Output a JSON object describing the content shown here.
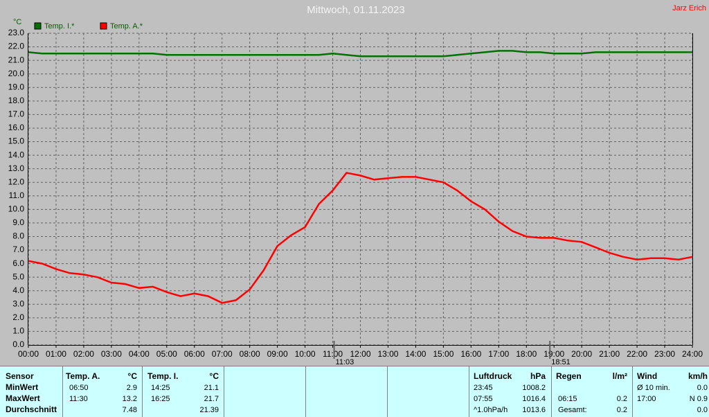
{
  "header": {
    "author": "Jarz Erich"
  },
  "chart_data": {
    "type": "line",
    "title": "Mittwoch, 01.11.2023",
    "y_unit": "°C",
    "grid": true,
    "x": [
      0,
      0.5,
      1,
      1.5,
      2,
      2.5,
      3,
      3.5,
      4,
      4.5,
      5,
      5.5,
      6,
      6.5,
      7,
      7.5,
      8,
      8.5,
      9,
      9.5,
      10,
      10.5,
      11,
      11.5,
      12,
      12.5,
      13,
      13.5,
      14,
      14.5,
      15,
      15.5,
      16,
      16.5,
      17,
      17.5,
      18,
      18.5,
      19,
      19.5,
      20,
      20.5,
      21,
      21.5,
      22,
      22.5,
      23,
      23.5,
      24
    ],
    "series": [
      {
        "name": "Temp. I.*",
        "color": "#007000",
        "values": [
          21.6,
          21.5,
          21.5,
          21.5,
          21.5,
          21.5,
          21.5,
          21.5,
          21.5,
          21.5,
          21.4,
          21.4,
          21.4,
          21.4,
          21.4,
          21.4,
          21.4,
          21.4,
          21.4,
          21.4,
          21.4,
          21.4,
          21.5,
          21.4,
          21.3,
          21.3,
          21.3,
          21.3,
          21.3,
          21.3,
          21.3,
          21.4,
          21.5,
          21.6,
          21.7,
          21.7,
          21.6,
          21.6,
          21.5,
          21.5,
          21.5,
          21.6,
          21.6,
          21.6,
          21.6,
          21.6,
          21.6,
          21.6,
          21.6
        ]
      },
      {
        "name": "Temp. A.*",
        "color": "#ff0000",
        "values": [
          6.2,
          6.0,
          5.6,
          5.3,
          5.2,
          5.0,
          4.6,
          4.5,
          4.2,
          4.3,
          3.9,
          3.6,
          3.8,
          3.6,
          3.1,
          3.3,
          4.1,
          5.5,
          7.3,
          8.1,
          8.7,
          10.4,
          11.4,
          12.7,
          12.5,
          12.2,
          12.3,
          12.4,
          12.4,
          12.2,
          12.0,
          11.4,
          10.6,
          10.0,
          9.1,
          8.4,
          8.0,
          7.9,
          7.9,
          7.7,
          7.6,
          7.2,
          6.8,
          6.5,
          6.3,
          6.4,
          6.4,
          6.3,
          6.5
        ]
      }
    ],
    "xlim": [
      0,
      24
    ],
    "ylim": [
      0,
      23
    ],
    "xticks": [
      {
        "value": 0,
        "label": "00:00"
      },
      {
        "value": 1,
        "label": "01:00"
      },
      {
        "value": 2,
        "label": "02:00"
      },
      {
        "value": 3,
        "label": "03:00"
      },
      {
        "value": 4,
        "label": "04:00"
      },
      {
        "value": 5,
        "label": "05:00"
      },
      {
        "value": 6,
        "label": "06:00"
      },
      {
        "value": 7,
        "label": "07:00"
      },
      {
        "value": 8,
        "label": "08:00"
      },
      {
        "value": 9,
        "label": "09:00"
      },
      {
        "value": 10,
        "label": "10:00"
      },
      {
        "value": 11,
        "label": "11:00"
      },
      {
        "value": 12,
        "label": "12:00"
      },
      {
        "value": 13,
        "label": "13:00"
      },
      {
        "value": 14,
        "label": "14:00"
      },
      {
        "value": 15,
        "label": "15:00"
      },
      {
        "value": 16,
        "label": "16:00"
      },
      {
        "value": 17,
        "label": "17:00"
      },
      {
        "value": 18,
        "label": "18:00"
      },
      {
        "value": 19,
        "label": "19:00"
      },
      {
        "value": 20,
        "label": "20:00"
      },
      {
        "value": 21,
        "label": "21:00"
      },
      {
        "value": 22,
        "label": "22:00"
      },
      {
        "value": 23,
        "label": "23:00"
      },
      {
        "value": 24,
        "label": "24:00"
      }
    ],
    "yticks": [
      {
        "value": 0,
        "label": "0.0"
      },
      {
        "value": 1,
        "label": "1.0"
      },
      {
        "value": 2,
        "label": "2.0"
      },
      {
        "value": 3,
        "label": "3.0"
      },
      {
        "value": 4,
        "label": "4.0"
      },
      {
        "value": 5,
        "label": "5.0"
      },
      {
        "value": 6,
        "label": "6.0"
      },
      {
        "value": 7,
        "label": "7.0"
      },
      {
        "value": 8,
        "label": "8.0"
      },
      {
        "value": 9,
        "label": "9.0"
      },
      {
        "value": 10,
        "label": "10.0"
      },
      {
        "value": 11,
        "label": "11.0"
      },
      {
        "value": 12,
        "label": "12.0"
      },
      {
        "value": 13,
        "label": "13.0"
      },
      {
        "value": 14,
        "label": "14.0"
      },
      {
        "value": 15,
        "label": "15.0"
      },
      {
        "value": 16,
        "label": "16.0"
      },
      {
        "value": 17,
        "label": "17.0"
      },
      {
        "value": 18,
        "label": "18.0"
      },
      {
        "value": 19,
        "label": "19.0"
      },
      {
        "value": 20,
        "label": "20.0"
      },
      {
        "value": 21,
        "label": "21.0"
      },
      {
        "value": 22,
        "label": "22.0"
      },
      {
        "value": 23,
        "label": "23.0"
      }
    ],
    "markers": [
      {
        "value": 11.05,
        "label": "11:03"
      },
      {
        "value": 18.85,
        "label": "18:51"
      }
    ]
  },
  "table": {
    "rows": [
      [
        "Sensor",
        "Temp. A.",
        "°C",
        "Temp. I.",
        "°C",
        "Luftdruck",
        "hPa",
        "Regen",
        "l/m²",
        "Wind",
        "km/h"
      ],
      [
        "MinWert",
        "06:50",
        "2.9",
        "14:25",
        "21.1",
        "23:45",
        "1008.2",
        null,
        null,
        "Ø 10 min.",
        "0.0"
      ],
      [
        "MaxWert",
        "11:30",
        "13.2",
        "16:25",
        "21.7",
        "07:55",
        "1016.4",
        "06:15",
        "0.2",
        "17:00",
        "N 0.9"
      ],
      [
        "Durchschnitt",
        null,
        "7.48",
        null,
        "21.39",
        "^1.0hPa/h",
        "1013.6",
        "Gesamt:",
        "0.2",
        null,
        "0.0"
      ]
    ]
  }
}
